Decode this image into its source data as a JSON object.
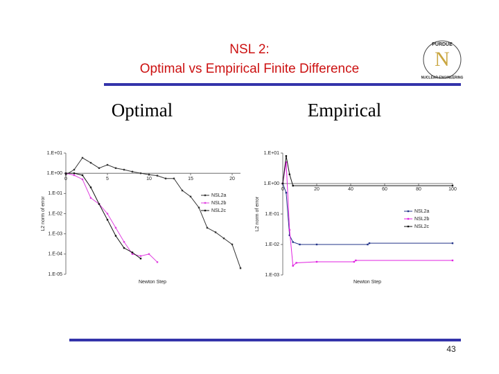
{
  "slide": {
    "title": [
      "NSL 2:",
      "Optimal vs Empirical Finite Difference"
    ],
    "headings": [
      "Optimal",
      "Empirical"
    ],
    "logo": [
      "PURDUE",
      "NUCLEAR ENGINEERING",
      "N"
    ],
    "page_number": "43"
  },
  "chart_data": [
    {
      "type": "line",
      "xlabel": "Newton Step",
      "ylabel": "L2 norm of error",
      "log_y": true,
      "xaxis_crosses": 1,
      "legend": "right",
      "xlim": [
        0,
        21
      ],
      "xticks": [
        0,
        5,
        10,
        15,
        20
      ],
      "ylim": [
        1e-05,
        10
      ],
      "yticks": [
        {
          "value": 10,
          "label": "1.E+01"
        },
        {
          "value": 1,
          "label": "1.E+00"
        },
        {
          "value": 0.1,
          "label": "1.E-01"
        },
        {
          "value": 0.01,
          "label": "1.E-02"
        },
        {
          "value": 0.001,
          "label": "1.E-03"
        },
        {
          "value": 0.0001,
          "label": "1.E-04"
        },
        {
          "value": 1e-05,
          "label": "1.E-05"
        }
      ],
      "series": [
        {
          "name": "NSL2a",
          "color": "#333333",
          "x": [
            0,
            1,
            2,
            3,
            4,
            5,
            6,
            7,
            8,
            9,
            10,
            11,
            12,
            13,
            14,
            15,
            16,
            17,
            18,
            19,
            20,
            21
          ],
          "values": [
            0.85,
            1.5,
            5.8,
            3.3,
            1.8,
            2.6,
            1.8,
            1.5,
            1.2,
            1,
            0.85,
            0.76,
            0.55,
            0.55,
            0.14,
            0.07,
            0.02,
            0.002,
            0.0012,
            0.0006,
            0.0003,
            2e-05
          ]
        },
        {
          "name": "NSL2b",
          "color": "#e040e0",
          "x": [
            0,
            1,
            2,
            3,
            4,
            5,
            6,
            7,
            8,
            9,
            10,
            11
          ],
          "values": [
            1,
            0.8,
            0.5,
            0.06,
            0.03,
            0.01,
            0.002,
            0.0004,
            0.0001,
            8e-05,
            0.0001,
            4e-05
          ]
        },
        {
          "name": "NSL2c",
          "color": "#111111",
          "x": [
            0,
            1,
            2,
            3,
            4,
            5,
            6,
            7,
            8,
            9
          ],
          "values": [
            1,
            1,
            0.8,
            0.2,
            0.03,
            0.005,
            0.0008,
            0.0002,
            0.00012,
            6e-05
          ]
        }
      ]
    },
    {
      "type": "line",
      "xlabel": "Newton Step",
      "ylabel": "L2 norm of error",
      "log_y": true,
      "xaxis_crosses": 1,
      "legend": "right",
      "xlim": [
        0,
        100
      ],
      "xticks": [
        0,
        20,
        40,
        60,
        80,
        100
      ],
      "ylim": [
        0.001,
        10
      ],
      "yticks": [
        {
          "value": 10,
          "label": "1.E+01"
        },
        {
          "value": 1,
          "label": "1.E+00"
        },
        {
          "value": 0.1,
          "label": "1.E-01"
        },
        {
          "value": 0.01,
          "label": "1.E-02"
        },
        {
          "value": 0.001,
          "label": "1.E-03"
        }
      ],
      "series": [
        {
          "name": "NSL2a",
          "color": "#223388",
          "x": [
            0,
            2,
            4,
            6,
            10,
            20,
            50,
            51,
            100
          ],
          "values": [
            1,
            0.5,
            0.02,
            0.012,
            0.01,
            0.01,
            0.01,
            0.011,
            0.011
          ]
        },
        {
          "name": "NSL2b",
          "color": "#e020e0",
          "x": [
            0,
            2,
            4,
            6,
            8,
            20,
            42,
            43,
            100
          ],
          "values": [
            1,
            5,
            0.03,
            0.002,
            0.0025,
            0.0027,
            0.0027,
            0.003,
            0.003
          ]
        },
        {
          "name": "NSL2c",
          "color": "#111111",
          "x": [
            0,
            2,
            4,
            6,
            100
          ],
          "values": [
            1,
            8,
            2,
            0.85,
            0.85
          ]
        }
      ]
    }
  ]
}
